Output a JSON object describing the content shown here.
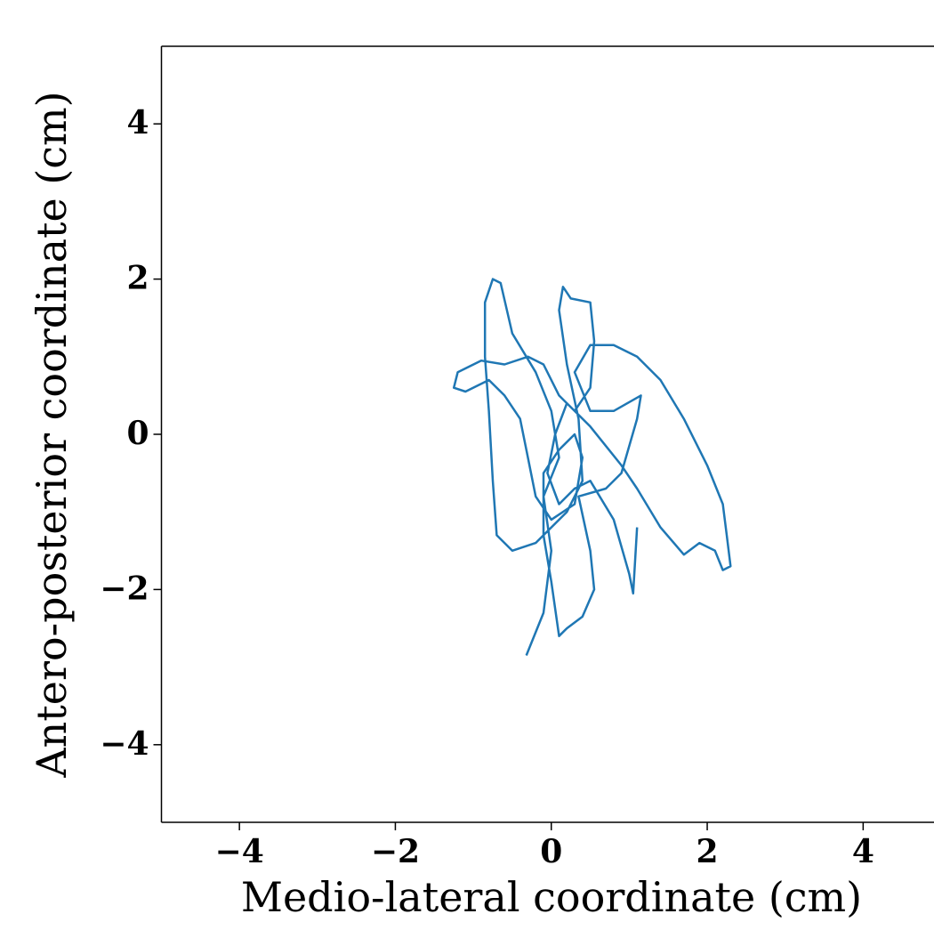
{
  "chart_data": {
    "type": "line",
    "xlabel": "Medio-lateral coordinate (cm)",
    "ylabel": "Antero-posterior coordinate (cm)",
    "color": "#1f77b4",
    "xlim": [
      -5,
      5
    ],
    "ylim": [
      -5,
      5
    ],
    "xticks": [
      {
        "value": -4,
        "label": "−4"
      },
      {
        "value": -2,
        "label": "−2"
      },
      0,
      2,
      4
    ],
    "yticks": [
      {
        "value": -4,
        "label": "−4"
      },
      {
        "value": -2,
        "label": "−2"
      },
      0,
      2,
      4
    ],
    "x": [
      -0.32,
      -0.1,
      0.0,
      -0.1,
      0.1,
      0.0,
      -0.2,
      -0.5,
      -0.65,
      -0.75,
      -0.85,
      -0.85,
      -0.8,
      -0.75,
      -0.7,
      -0.5,
      -0.2,
      0.2,
      0.4,
      0.35,
      0.2,
      0.1,
      0.15,
      0.25,
      0.5,
      0.55,
      0.5,
      0.3,
      0.1,
      -0.1,
      -0.3,
      -0.6,
      -0.9,
      -1.2,
      -1.25,
      -1.1,
      -0.8,
      -0.6,
      -0.4,
      -0.3,
      -0.2,
      0.0,
      0.3,
      0.4,
      0.3,
      0.1,
      -0.1,
      -0.1,
      0.0,
      0.1,
      0.2,
      0.4,
      0.55,
      0.5,
      0.35,
      0.7,
      0.9,
      1.1,
      1.15,
      0.8,
      0.5,
      0.3,
      0.5,
      0.8,
      1.1,
      1.4,
      1.7,
      2.0,
      2.2,
      2.25,
      2.3,
      2.2,
      2.1,
      1.9,
      1.7,
      1.4,
      1.1,
      0.9,
      0.5,
      0.2,
      0.05,
      -0.05,
      0.1,
      0.3,
      0.5,
      0.8,
      1.0,
      1.05,
      1.1
    ],
    "y": [
      -2.85,
      -2.3,
      -1.5,
      -0.8,
      -0.3,
      0.3,
      0.8,
      1.3,
      1.95,
      2.0,
      1.7,
      1.0,
      0.3,
      -0.6,
      -1.3,
      -1.5,
      -1.4,
      -1.0,
      -0.6,
      0.2,
      0.9,
      1.6,
      1.9,
      1.75,
      1.7,
      1.2,
      0.6,
      0.3,
      0.5,
      0.9,
      1.0,
      0.9,
      0.95,
      0.8,
      0.6,
      0.55,
      0.7,
      0.5,
      0.2,
      -0.3,
      -0.8,
      -1.1,
      -0.9,
      -0.3,
      0.0,
      -0.2,
      -0.5,
      -1.3,
      -1.9,
      -2.6,
      -2.5,
      -2.35,
      -2.0,
      -1.5,
      -0.8,
      -0.7,
      -0.5,
      0.2,
      0.5,
      0.3,
      0.3,
      0.8,
      1.15,
      1.15,
      1.0,
      0.7,
      0.2,
      -0.4,
      -0.9,
      -1.3,
      -1.7,
      -1.75,
      -1.5,
      -1.4,
      -1.55,
      -1.2,
      -0.7,
      -0.4,
      0.1,
      0.4,
      0.0,
      -0.5,
      -0.9,
      -0.7,
      -0.6,
      -1.1,
      -1.8,
      -2.05,
      -1.2
    ]
  }
}
